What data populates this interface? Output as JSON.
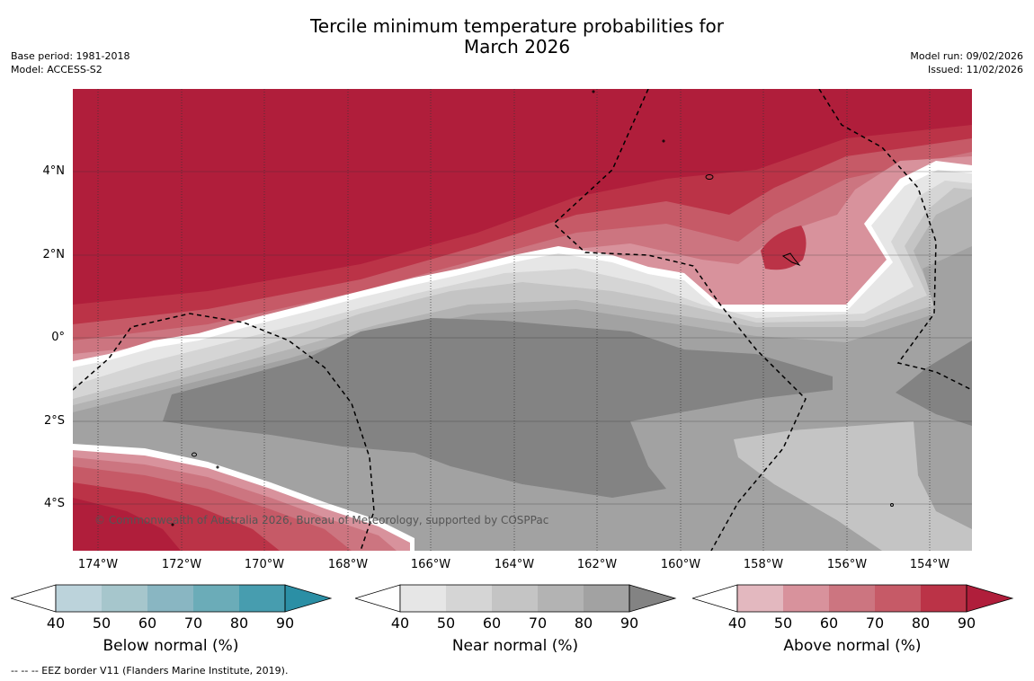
{
  "title_line1": "Tercile minimum temperature probabilities for",
  "title_line2": "March 2026",
  "meta_left": {
    "base_period": "Base period: 1981-2018",
    "model": "Model: ACCESS-S2"
  },
  "meta_right": {
    "model_run": "Model run: 09/02/2026",
    "issued": "Issued: 11/02/2026"
  },
  "longitude_labels": [
    "174°W",
    "172°W",
    "170°W",
    "168°W",
    "166°W",
    "164°W",
    "162°W",
    "160°W",
    "158°W",
    "156°W",
    "154°W"
  ],
  "latitude_labels": [
    "4°N",
    "2°N",
    "0°",
    "2°S",
    "4°S"
  ],
  "copyright": "© Commonwealth of Australia 2026, Bureau of Meteorology, supported by COSPPac",
  "colorbars": [
    {
      "title": "Below normal (%)",
      "ticks": [
        "40",
        "50",
        "60",
        "70",
        "80",
        "90"
      ],
      "colors": [
        "#bcd3db",
        "#a6c6cc",
        "#89b6c2",
        "#6bacb8",
        "#479daf",
        "#2b8fa5"
      ]
    },
    {
      "title": "Near normal (%)",
      "ticks": [
        "40",
        "50",
        "60",
        "70",
        "80",
        "90"
      ],
      "colors": [
        "#e6e6e6",
        "#d5d5d5",
        "#c4c4c4",
        "#b3b3b3",
        "#a2a2a2",
        "#838383"
      ]
    },
    {
      "title": "Above normal (%)",
      "ticks": [
        "40",
        "50",
        "60",
        "70",
        "80",
        "90"
      ],
      "colors": [
        "#e3b8bf",
        "#d8929c",
        "#cc7580",
        "#c65a67",
        "#bb3347",
        "#b01e3b"
      ]
    }
  ],
  "footnote": "--  --  -- EEZ border V11 (Flanders Marine Institute, 2019).",
  "colors": {
    "above_90": "#b01e3b",
    "near_90": "#838383",
    "near_80": "#a2a2a2",
    "near_70": "#b3b3b3",
    "near_60": "#c4c4c4",
    "near_50": "#d5d5d5",
    "near_40": "#e6e6e6"
  }
}
